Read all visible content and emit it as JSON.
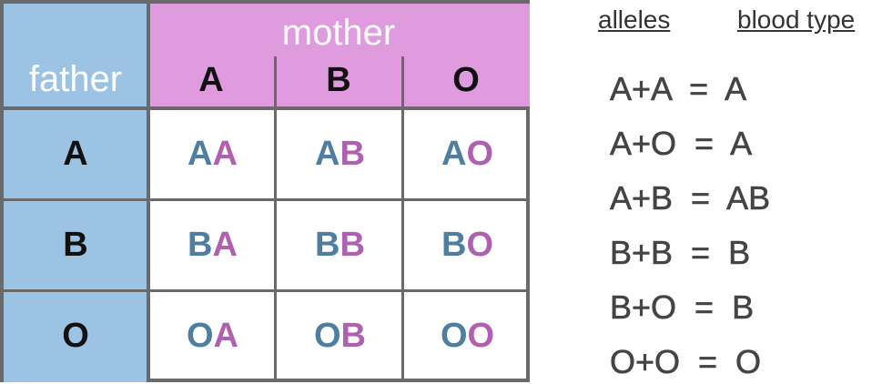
{
  "table": {
    "father_label": "father",
    "mother_label": "mother",
    "mother_alleles": [
      "A",
      "B",
      "O"
    ],
    "father_alleles": [
      "A",
      "B",
      "O"
    ],
    "genotypes": [
      [
        [
          "A",
          "A"
        ],
        [
          "A",
          "B"
        ],
        [
          "A",
          "O"
        ]
      ],
      [
        [
          "B",
          "A"
        ],
        [
          "B",
          "B"
        ],
        [
          "B",
          "O"
        ]
      ],
      [
        [
          "O",
          "A"
        ],
        [
          "O",
          "B"
        ],
        [
          "O",
          "O"
        ]
      ]
    ]
  },
  "legend": {
    "alleles_header": "alleles",
    "blood_type_header": "blood type",
    "rows": [
      "A+A  =  A",
      "A+O  =  A",
      "A+B  =  AB",
      "B+B  =  B",
      "B+O  =  B",
      "O+O  =  O"
    ]
  },
  "colors": {
    "father": "#9dc3e4",
    "mother": "#e09ade",
    "father_allele_text": "#4e7fa0",
    "mother_allele_text": "#b060b0"
  }
}
